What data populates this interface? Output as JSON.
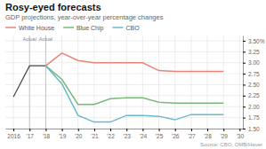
{
  "chart_data": {
    "type": "line",
    "title": "Rosy-eyed forecasts",
    "subtitle": "GDP projections, year-over-year percentage changes",
    "source": "Source: CBO, OMB/Haver",
    "xlim": [
      2015.5,
      2030.2
    ],
    "ylim": [
      1.5,
      3.62
    ],
    "xticks": [
      2016,
      {
        "value": 2017,
        "label": "'17"
      },
      {
        "value": 2018,
        "label": "'18"
      },
      {
        "value": 2019,
        "label": "'19"
      },
      {
        "value": 2020,
        "label": "'20"
      },
      {
        "value": 2021,
        "label": "'21"
      },
      {
        "value": 2022,
        "label": "'22"
      },
      {
        "value": 2023,
        "label": "'23"
      },
      {
        "value": 2024,
        "label": "'24"
      },
      {
        "value": 2025,
        "label": "'25"
      },
      {
        "value": 2026,
        "label": "'26"
      },
      {
        "value": 2027,
        "label": "'27"
      },
      {
        "value": 2028,
        "label": "'28"
      },
      {
        "value": 2029,
        "label": "'29"
      },
      {
        "value": 2030,
        "label": "'30"
      }
    ],
    "yticks": [
      {
        "value": 1.5,
        "label": "1.50"
      },
      {
        "value": 1.75,
        "label": "1.75"
      },
      {
        "value": 2.0,
        "label": "2.00"
      },
      {
        "value": 2.25,
        "label": "2.25"
      },
      {
        "value": 2.5,
        "label": "2.50"
      },
      {
        "value": 2.75,
        "label": "2.75"
      },
      {
        "value": 3.0,
        "label": "3.00"
      },
      {
        "value": 3.25,
        "label": "3.25"
      },
      {
        "value": 3.5,
        "label": "3.50%"
      }
    ],
    "grid": true,
    "series": [
      {
        "color": "#444444",
        "x": [
          2016,
          2017,
          2018
        ],
        "values": [
          2.22,
          2.93,
          2.93
        ]
      },
      {
        "name": "White House",
        "color": "#e8837a",
        "x": [
          2018,
          2019,
          2020,
          2021,
          2022,
          2023,
          2024,
          2025,
          2026,
          2027,
          2028,
          2029
        ],
        "values": [
          2.93,
          3.22,
          3.05,
          3.0,
          3.0,
          3.0,
          3.0,
          2.82,
          2.8,
          2.8,
          2.8,
          2.8
        ]
      },
      {
        "name": "Blue Chip",
        "color": "#7ab87a",
        "x": [
          2018,
          2019,
          2020,
          2021,
          2022,
          2023,
          2024,
          2025,
          2026,
          2027,
          2028,
          2029
        ],
        "values": [
          2.93,
          2.62,
          2.05,
          2.05,
          2.18,
          2.2,
          2.2,
          2.1,
          2.08,
          2.08,
          2.08,
          2.08
        ]
      },
      {
        "name": "CBO",
        "color": "#6ab8cc",
        "x": [
          2018,
          2019,
          2020,
          2021,
          2022,
          2023,
          2024,
          2025,
          2026,
          2027,
          2028,
          2029
        ],
        "values": [
          2.93,
          2.52,
          1.8,
          1.65,
          1.65,
          1.8,
          1.8,
          1.78,
          1.7,
          1.82,
          1.82,
          1.82
        ]
      }
    ],
    "annotations": [
      {
        "text": "Actual",
        "x": 2017,
        "y": 3.585
      },
      {
        "text": "Actual",
        "x": 2018,
        "y": 3.585
      }
    ]
  }
}
